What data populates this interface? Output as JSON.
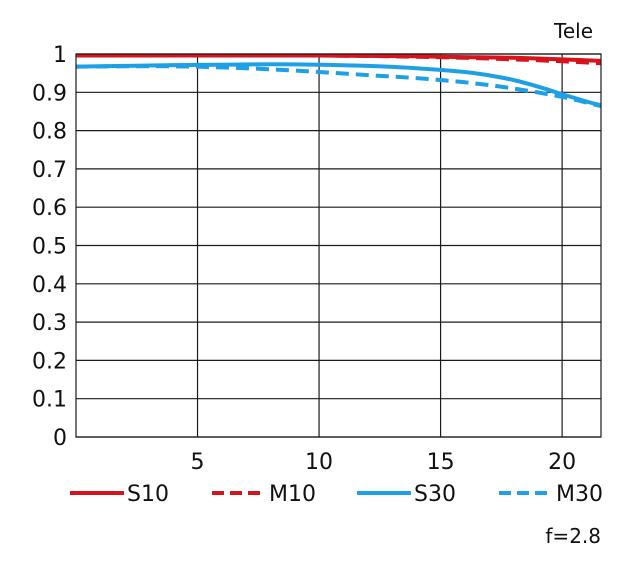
{
  "chart_data": {
    "type": "line",
    "title": "Tele",
    "xlabel": "",
    "ylabel": "",
    "xlim": [
      0,
      21.6
    ],
    "ylim": [
      0,
      1
    ],
    "x_ticks": [
      {
        "value": 5,
        "label": "5"
      },
      {
        "value": 10,
        "label": "10"
      },
      {
        "value": 15,
        "label": "15"
      },
      {
        "value": 20,
        "label": "20"
      }
    ],
    "y_ticks": [
      {
        "value": 0,
        "label": "0"
      },
      {
        "value": 0.1,
        "label": "0.1"
      },
      {
        "value": 0.2,
        "label": "0.2"
      },
      {
        "value": 0.3,
        "label": "0.3"
      },
      {
        "value": 0.4,
        "label": "0.4"
      },
      {
        "value": 0.5,
        "label": "0.5"
      },
      {
        "value": 0.6,
        "label": "0.6"
      },
      {
        "value": 0.7,
        "label": "0.7"
      },
      {
        "value": 0.8,
        "label": "0.8"
      },
      {
        "value": 0.9,
        "label": "0.9"
      },
      {
        "value": 1,
        "label": "1"
      }
    ],
    "grid": true,
    "legend_position": "bottom",
    "annotation": "f=2.8",
    "series": [
      {
        "name": "S10",
        "color": "#d7141e",
        "dash": "solid",
        "x": [
          0,
          2,
          4,
          6,
          8,
          10,
          12,
          14,
          16,
          18,
          20,
          21.6
        ],
        "y": [
          0.996,
          0.996,
          0.996,
          0.996,
          0.996,
          0.996,
          0.995,
          0.994,
          0.992,
          0.99,
          0.986,
          0.982
        ]
      },
      {
        "name": "M10",
        "color": "#d7141e",
        "dash": "dashed",
        "x": [
          0,
          2,
          4,
          6,
          8,
          10,
          12,
          14,
          16,
          18,
          20,
          21.6
        ],
        "y": [
          0.996,
          0.996,
          0.996,
          0.996,
          0.996,
          0.996,
          0.995,
          0.993,
          0.99,
          0.986,
          0.981,
          0.976
        ]
      },
      {
        "name": "S30",
        "color": "#1ea0e6",
        "dash": "solid",
        "x": [
          0,
          2,
          4,
          6,
          8,
          10,
          12,
          14,
          16,
          17,
          18,
          19,
          20,
          21,
          21.6
        ],
        "y": [
          0.967,
          0.969,
          0.971,
          0.972,
          0.973,
          0.972,
          0.969,
          0.963,
          0.953,
          0.944,
          0.932,
          0.915,
          0.895,
          0.876,
          0.866
        ]
      },
      {
        "name": "M30",
        "color": "#1ea0e6",
        "dash": "dashed",
        "x": [
          0,
          2,
          4,
          6,
          8,
          10,
          12,
          14,
          16,
          18,
          20,
          21.6
        ],
        "y": [
          0.967,
          0.968,
          0.968,
          0.965,
          0.96,
          0.953,
          0.945,
          0.937,
          0.926,
          0.91,
          0.888,
          0.864
        ]
      }
    ]
  }
}
